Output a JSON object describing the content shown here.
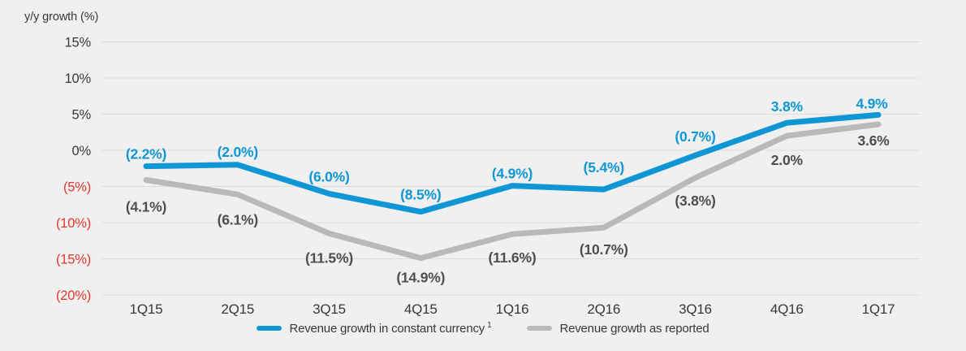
{
  "chart": {
    "background": "#f0f0f0",
    "gridline_color": "#dcdcdc",
    "axis_text_color": "#37383a",
    "negative_tick_color": "#e4362e"
  },
  "chart_data": {
    "type": "line",
    "title": "",
    "ylabel": "y/y growth (%)",
    "xlabel": "",
    "x_categories": [
      "1Q15",
      "2Q15",
      "3Q15",
      "4Q15",
      "1Q16",
      "2Q16",
      "3Q16",
      "4Q16",
      "1Q17"
    ],
    "ylim": [
      -20,
      15
    ],
    "grid": true,
    "legend_position": "bottom",
    "y_ticks": [
      {
        "value": 15,
        "label": "15%",
        "color": "#37383a"
      },
      {
        "value": 10,
        "label": "10%",
        "color": "#37383a"
      },
      {
        "value": 5,
        "label": "5%",
        "color": "#37383a"
      },
      {
        "value": 0,
        "label": "0%",
        "color": "#37383a"
      },
      {
        "value": -5,
        "label": "(5%)",
        "color": "#e4362e"
      },
      {
        "value": -10,
        "label": "(10%)",
        "color": "#e4362e"
      },
      {
        "value": -15,
        "label": "(15%)",
        "color": "#e4362e"
      },
      {
        "value": -20,
        "label": "(20%)",
        "color": "#e4362e"
      }
    ],
    "series": [
      {
        "name": "Revenue growth in constant currency",
        "superscript": "1",
        "color": "#0f97d5",
        "label_color": "#0f97d5",
        "values": [
          -2.2,
          -2.0,
          -6.0,
          -8.5,
          -4.9,
          -5.4,
          -0.7,
          3.8,
          4.9
        ],
        "labels": [
          "(2.2%)",
          "(2.0%)",
          "(6.0%)",
          "(8.5%)",
          "(4.9%)",
          "(5.4%)",
          "(0.7%)",
          "3.8%",
          "4.9%"
        ]
      },
      {
        "name": "Revenue growth as reported",
        "superscript": "",
        "color": "#b8b9bb",
        "label_color": "#4d4e50",
        "values": [
          -4.1,
          -6.1,
          -11.5,
          -14.9,
          -11.6,
          -10.7,
          -3.8,
          2.0,
          3.6
        ],
        "labels": [
          "(4.1%)",
          "(6.1%)",
          "(11.5%)",
          "(14.9%)",
          "(11.6%)",
          "(10.7%)",
          "(3.8%)",
          "2.0%",
          "3.6%"
        ]
      }
    ]
  }
}
